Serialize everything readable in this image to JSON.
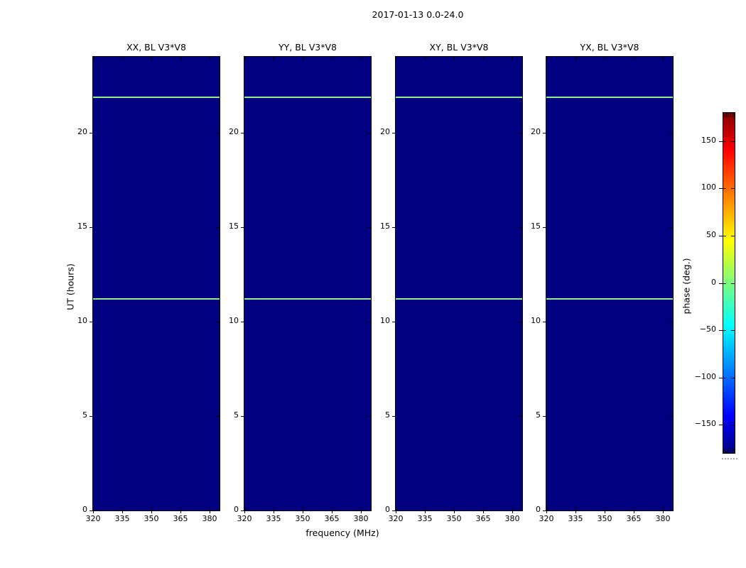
{
  "figure": {
    "title": "2017-01-13 0.0-24.0",
    "xlabel": "frequency (MHz)",
    "ylabel": "UT (hours)",
    "colorbar_label": "phase (deg.)"
  },
  "panels": [
    {
      "id": "xx",
      "title": "XX, BL V3*V8"
    },
    {
      "id": "yy",
      "title": "YY, BL V3*V8"
    },
    {
      "id": "xy",
      "title": "XY, BL V3*V8"
    },
    {
      "id": "yx",
      "title": "YX, BL V3*V8"
    }
  ],
  "axes": {
    "x_tick_values": [
      320,
      335,
      350,
      365,
      380
    ],
    "x_tick_labels": [
      "320",
      "335",
      "350",
      "365",
      "380"
    ],
    "x_range": [
      320,
      385.12
    ],
    "y_tick_values": [
      0,
      5,
      10,
      15,
      20
    ],
    "y_tick_labels": [
      "0",
      "5",
      "10",
      "15",
      "20"
    ],
    "y_range": [
      0,
      24
    ]
  },
  "colorbar": {
    "tick_values": [
      150,
      100,
      50,
      0,
      -50,
      -100,
      -150
    ],
    "tick_labels": [
      "150",
      "100",
      "50",
      "0",
      "−50",
      "−100",
      "−150"
    ],
    "range": [
      -180,
      180
    ],
    "colormap": "jet"
  },
  "colors": {
    "panel_background": "#000080",
    "event_line": "#90ee90",
    "figure_background": "#ffffff"
  },
  "chart_data": {
    "type": "heatmap",
    "title": "2017-01-13 0.0-24.0",
    "xlabel": "frequency (MHz)",
    "ylabel": "UT (hours)",
    "colorbar_label": "phase (deg.)",
    "colormap": "jet",
    "color_range_deg": [
      -180,
      180
    ],
    "x_range_mhz": [
      320,
      385
    ],
    "y_range_hours": [
      0,
      24
    ],
    "x_ticks": [
      320,
      335,
      350,
      365,
      380
    ],
    "y_ticks": [
      0,
      5,
      10,
      15,
      20
    ],
    "colorbar_ticks": [
      150,
      100,
      50,
      0,
      -50,
      -100,
      -150
    ],
    "panels": [
      "XX, BL V3*V8",
      "YY, BL V3*V8",
      "XY, BL V3*V8",
      "YX, BL V3*V8"
    ],
    "background_phase_deg": -180,
    "features": [
      {
        "kind": "horizontal-line",
        "ut_hours": 21.86,
        "phase_deg_approx": 25,
        "color": "#90ee90",
        "panels": "all"
      },
      {
        "kind": "horizontal-line",
        "ut_hours": 11.19,
        "phase_deg_approx": 25,
        "color": "#90ee90",
        "panels": "all"
      }
    ],
    "legend_position": "right-colorbar",
    "grid": false
  }
}
